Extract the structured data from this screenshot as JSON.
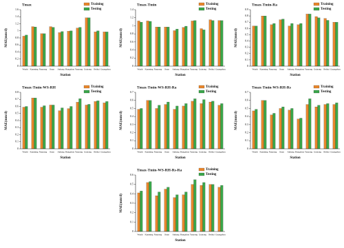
{
  "chart_data": [
    {
      "type": "bar",
      "title": "Tmax",
      "x_label": "Station",
      "y_label": "MAE(mm/d)",
      "categories": [
        "Wuzhi",
        "Kunming",
        "Nanyang",
        "Jinan",
        "Anhang",
        "Hangzhou",
        "Yanyang",
        "Guiyang",
        "Beihai",
        "Guangzhou"
      ],
      "series": [
        {
          "name": "Training",
          "color": "#e8862c",
          "values": [
            0.85,
            1.12,
            0.92,
            1.12,
            0.95,
            0.99,
            1.08,
            1.37,
            0.97,
            0.97
          ]
        },
        {
          "name": "Testing",
          "color": "#3aa64a",
          "values": [
            0.88,
            1.11,
            0.92,
            1.1,
            0.98,
            1.0,
            1.1,
            1.37,
            1.0,
            0.97
          ]
        }
      ],
      "ylim": [
        0,
        1.6
      ],
      "yticks": [
        0,
        0.2,
        0.4,
        0.6,
        0.8,
        1.0,
        1.2,
        1.4,
        1.6
      ]
    },
    {
      "type": "bar",
      "title": "Tmax-Tmin",
      "x_label": "Station",
      "y_label": "MAE(mm/d)",
      "categories": [
        "Wuzhi",
        "Kunming",
        "Nanyang",
        "Jinan",
        "Anhang",
        "Hangzhou",
        "Yanyang",
        "Guiyang",
        "Beihai",
        "Guangzhou"
      ],
      "series": [
        {
          "name": "Training",
          "color": "#e8862c",
          "values": [
            1.12,
            1.12,
            0.97,
            0.97,
            0.88,
            0.96,
            1.12,
            0.93,
            1.15,
            1.13
          ]
        },
        {
          "name": "Testing",
          "color": "#3aa64a",
          "values": [
            1.09,
            1.11,
            0.97,
            0.97,
            0.92,
            0.99,
            1.13,
            0.9,
            1.13,
            1.13
          ]
        }
      ],
      "ylim": [
        0,
        1.4
      ],
      "yticks": [
        0,
        0.2,
        0.4,
        0.6,
        0.8,
        1.0,
        1.2,
        1.4
      ]
    },
    {
      "type": "bar",
      "title": "Tmax-Tmin-Ra",
      "x_label": "Station",
      "y_label": "MAE(mm/d)",
      "categories": [
        "Wuzhi",
        "Kunming",
        "Nanyang",
        "Jinan",
        "Anhang",
        "Hangzhou",
        "Yanyang",
        "Guiyang",
        "Beihai",
        "Guangzhou"
      ],
      "series": [
        {
          "name": "Training",
          "color": "#e8862c",
          "values": [
            0.64,
            0.8,
            0.66,
            0.74,
            0.64,
            0.66,
            0.83,
            0.79,
            0.76,
            0.7
          ]
        },
        {
          "name": "Testing",
          "color": "#3aa64a",
          "values": [
            0.64,
            0.8,
            0.68,
            0.75,
            0.68,
            0.68,
            0.83,
            0.77,
            0.73,
            0.7
          ]
        }
      ],
      "ylim": [
        0,
        0.9
      ],
      "yticks": [
        0,
        0.1,
        0.2,
        0.3,
        0.4,
        0.5,
        0.6,
        0.7,
        0.8,
        0.9
      ]
    },
    {
      "type": "bar",
      "title": "Tmax-Tmin-WS-RH",
      "x_label": "Station",
      "y_label": "MAE(mm/d)",
      "categories": [
        "Wuzhi",
        "Kunming",
        "Nanyang",
        "Jinan",
        "Anhang",
        "Hangzhou",
        "Yanyang",
        "Guiyang",
        "Beihai",
        "Guangzhou"
      ],
      "series": [
        {
          "name": "Training",
          "color": "#e8862c",
          "values": [
            0.59,
            0.72,
            0.59,
            0.62,
            0.54,
            0.57,
            0.66,
            0.62,
            0.67,
            0.65
          ]
        },
        {
          "name": "Testing",
          "color": "#3aa64a",
          "values": [
            0.6,
            0.72,
            0.61,
            0.62,
            0.58,
            0.6,
            0.71,
            0.63,
            0.68,
            0.67
          ]
        }
      ],
      "ylim": [
        0,
        0.8
      ],
      "yticks": [
        0,
        0.1,
        0.2,
        0.3,
        0.4,
        0.5,
        0.6,
        0.7,
        0.8
      ]
    },
    {
      "type": "bar",
      "title": "Tmax-Tmin-WS-RH-Ra",
      "x_label": "Station",
      "y_label": "MAE(mm/d)",
      "categories": [
        "Wuzhi",
        "Kunming",
        "Nanyang",
        "Jinan",
        "Anhang",
        "Hangzhou",
        "Yanyang",
        "Guiyang",
        "Beihai",
        "Guangzhou"
      ],
      "series": [
        {
          "name": "Training",
          "color": "#e8862c",
          "values": [
            0.49,
            0.6,
            0.5,
            0.55,
            0.49,
            0.53,
            0.59,
            0.56,
            0.58,
            0.54
          ]
        },
        {
          "name": "Testing",
          "color": "#3aa64a",
          "values": [
            0.5,
            0.6,
            0.54,
            0.58,
            0.53,
            0.56,
            0.62,
            0.61,
            0.59,
            0.56
          ]
        }
      ],
      "ylim": [
        0,
        0.7
      ],
      "yticks": [
        0,
        0.1,
        0.2,
        0.3,
        0.4,
        0.5,
        0.6,
        0.7
      ]
    },
    {
      "type": "bar",
      "title": "Tmax-Tmin-WS-RH-Rs",
      "x_label": "Station",
      "y_label": "MAE(mm/d)",
      "categories": [
        "Wuzhi",
        "Kunming",
        "Nanyang",
        "Jinan",
        "Anhang",
        "Hangzhou",
        "Yanyang",
        "Guiyang",
        "Beihai",
        "Guangzhou"
      ],
      "series": [
        {
          "name": "Training",
          "color": "#e8862c",
          "values": [
            0.47,
            0.6,
            0.42,
            0.5,
            0.48,
            0.37,
            0.55,
            0.52,
            0.55,
            0.55
          ]
        },
        {
          "name": "Testing",
          "color": "#3aa64a",
          "values": [
            0.49,
            0.6,
            0.44,
            0.52,
            0.5,
            0.38,
            0.62,
            0.54,
            0.56,
            0.57
          ]
        }
      ],
      "ylim": [
        0,
        0.7
      ],
      "yticks": [
        0,
        0.1,
        0.2,
        0.3,
        0.4,
        0.5,
        0.6,
        0.7
      ]
    },
    {
      "type": "bar",
      "title": "Tmax-Tmin-WS-RH-Rs-Ra",
      "x_label": "Station",
      "y_label": "MAE(mm/d)",
      "categories": [
        "Wuzhi",
        "Kunming",
        "Nanyang",
        "Jinan",
        "Anhang",
        "Hangzhou",
        "Yanyang",
        "Guiyang",
        "Beihai",
        "Guangzhou"
      ],
      "series": [
        {
          "name": "Training",
          "color": "#e8862c",
          "values": [
            0.41,
            0.52,
            0.38,
            0.45,
            0.36,
            0.39,
            0.5,
            0.49,
            0.5,
            0.47
          ]
        },
        {
          "name": "Testing",
          "color": "#3aa64a",
          "values": [
            0.43,
            0.53,
            0.42,
            0.47,
            0.39,
            0.42,
            0.55,
            0.52,
            0.5,
            0.49
          ]
        }
      ],
      "ylim": [
        0,
        0.6
      ],
      "yticks": [
        0,
        0.1,
        0.2,
        0.3,
        0.4,
        0.5,
        0.6
      ]
    }
  ]
}
